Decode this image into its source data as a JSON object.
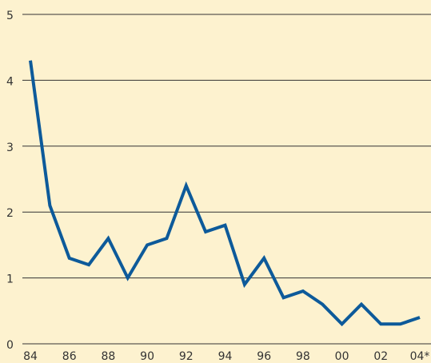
{
  "chart_data": {
    "type": "line",
    "categories": [
      "84",
      null,
      "86",
      null,
      "88",
      null,
      "90",
      null,
      "92",
      null,
      "94",
      null,
      "96",
      null,
      "98",
      null,
      "00",
      null,
      "02",
      null,
      "04*"
    ],
    "series": [
      {
        "color": "#0d5a9a",
        "values": [
          4.3,
          2.1,
          1.3,
          1.2,
          1.6,
          1.0,
          1.5,
          1.6,
          2.4,
          1.7,
          1.8,
          0.9,
          1.3,
          0.7,
          0.8,
          0.6,
          0.3,
          0.6,
          0.3,
          0.3,
          0.4
        ]
      }
    ],
    "ylim": [
      0,
      5
    ],
    "yticks": [
      0,
      1,
      2,
      3,
      4,
      5
    ],
    "grid": true
  }
}
